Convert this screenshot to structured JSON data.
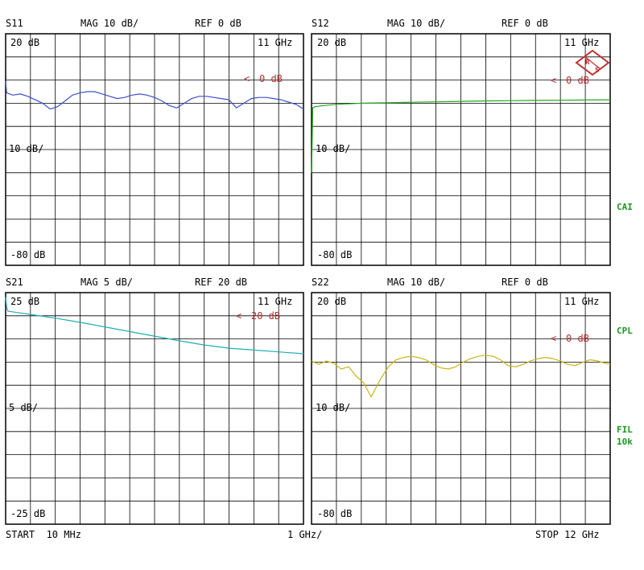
{
  "colors": {
    "background": "#ffffff",
    "grid": "#000000",
    "ref_marker": "#b03030",
    "status_green": "#1a9a1a",
    "logo": "#c03030"
  },
  "footer": {
    "start": "START  10 MHz",
    "division": "1 GHz/",
    "stop": "STOP 12 GHz"
  },
  "status": {
    "cai": "CAI",
    "cpl": "CPL",
    "fil": "FIL",
    "fil_bw": "10k"
  },
  "logo": {
    "letters": [
      "R",
      "S"
    ]
  },
  "chart_data": [
    {
      "type": "line",
      "title": "S11",
      "mag": "MAG 10 dB/",
      "ref": "REF 0 dB",
      "top_label": "20 dB",
      "mid_label": "10 dB/",
      "bottom_label": "-80 dB",
      "freq_label": "11 GHz",
      "ref_marker": "0 dB",
      "ylim": [
        -80,
        20
      ],
      "xlim": [
        0.01,
        12
      ],
      "ref_level": 0,
      "color": "#3d4fd0",
      "x": [
        0.01,
        0.03,
        0.05,
        0.3,
        0.6,
        0.9,
        1.2,
        1.5,
        1.8,
        2.1,
        2.4,
        2.7,
        3.0,
        3.3,
        3.6,
        3.9,
        4.2,
        4.5,
        4.8,
        5.1,
        5.4,
        5.7,
        6.0,
        6.3,
        6.6,
        6.9,
        7.2,
        7.5,
        7.8,
        8.1,
        8.4,
        8.7,
        9.0,
        9.3,
        9.6,
        9.9,
        10.2,
        10.5,
        10.8,
        11.1,
        11.4,
        11.7,
        12.0
      ],
      "values": [
        -0.5,
        -3.0,
        -5.5,
        -6.5,
        -6.0,
        -7.0,
        -8.5,
        -10.0,
        -12.5,
        -11.5,
        -9.0,
        -6.5,
        -5.5,
        -5.0,
        -5.0,
        -6.0,
        -7.0,
        -8.0,
        -7.5,
        -6.5,
        -6.0,
        -6.5,
        -7.5,
        -9.0,
        -11.0,
        -12.0,
        -10.0,
        -8.0,
        -7.0,
        -7.0,
        -7.5,
        -8.0,
        -8.5,
        -12.0,
        -10.0,
        -8.0,
        -7.5,
        -7.5,
        -8.0,
        -8.5,
        -9.5,
        -10.5,
        -12.5
      ]
    },
    {
      "type": "line",
      "title": "S12",
      "mag": "MAG 10 dB/",
      "ref": "REF 0 dB",
      "top_label": "20 dB",
      "mid_label": "10 dB/",
      "bottom_label": "-80 dB",
      "freq_label": "11 GHz",
      "ref_marker": "0 dB",
      "ylim": [
        -80,
        20
      ],
      "xlim": [
        0.01,
        12
      ],
      "ref_level": 0,
      "color": "#1fa81f",
      "x": [
        0.01,
        0.03,
        0.06,
        0.15,
        0.5,
        1.0,
        2.0,
        3.0,
        4.0,
        5.0,
        6.0,
        7.0,
        8.0,
        9.0,
        10.0,
        11.0,
        12.0
      ],
      "values": [
        -40.0,
        -30.0,
        -12.0,
        -11.5,
        -11.0,
        -10.5,
        -10.0,
        -9.8,
        -9.6,
        -9.4,
        -9.2,
        -9.0,
        -8.9,
        -8.8,
        -8.7,
        -8.6,
        -8.5
      ]
    },
    {
      "type": "line",
      "title": "S21",
      "mag": "MAG 5 dB/",
      "ref": "REF 20 dB",
      "top_label": "25 dB",
      "mid_label": "5 dB/",
      "bottom_label": "-25 dB",
      "freq_label": "11 GHz",
      "ref_marker": "20 dB",
      "ylim": [
        -25,
        25
      ],
      "xlim": [
        0.01,
        12
      ],
      "ref_level": 20,
      "color": "#1fb0b0",
      "x": [
        0.01,
        0.05,
        0.1,
        0.5,
        1.0,
        2.0,
        3.0,
        4.0,
        5.0,
        6.0,
        7.0,
        8.0,
        9.0,
        10.0,
        11.0,
        12.0
      ],
      "values": [
        24.0,
        22.0,
        21.0,
        20.7,
        20.3,
        19.5,
        18.6,
        17.6,
        16.6,
        15.6,
        14.6,
        13.7,
        13.0,
        12.6,
        12.2,
        11.8
      ]
    },
    {
      "type": "line",
      "title": "S22",
      "mag": "MAG 10 dB/",
      "ref": "REF 0 dB",
      "top_label": "20 dB",
      "mid_label": "10 dB/",
      "bottom_label": "-80 dB",
      "freq_label": "11 GHz",
      "ref_marker": "0 dB",
      "ylim": [
        -80,
        20
      ],
      "xlim": [
        0.01,
        12
      ],
      "ref_level": 0,
      "color": "#c8b514",
      "x": [
        0.01,
        0.3,
        0.6,
        0.9,
        1.2,
        1.5,
        1.8,
        2.1,
        2.4,
        2.6,
        2.8,
        3.1,
        3.4,
        3.7,
        4.0,
        4.3,
        4.6,
        4.9,
        5.2,
        5.5,
        5.8,
        6.1,
        6.4,
        6.7,
        7.0,
        7.3,
        7.6,
        7.9,
        8.2,
        8.5,
        8.8,
        9.1,
        9.4,
        9.7,
        10.0,
        10.3,
        10.6,
        10.9,
        11.2,
        11.5,
        11.8,
        12.0
      ],
      "values": [
        -9.5,
        -11.0,
        -9.5,
        -10.5,
        -13.0,
        -12.0,
        -16.0,
        -19.0,
        -25.0,
        -21.0,
        -17.0,
        -12.0,
        -9.0,
        -8.0,
        -7.5,
        -8.0,
        -9.0,
        -11.0,
        -12.5,
        -13.0,
        -12.0,
        -10.0,
        -8.5,
        -7.5,
        -7.0,
        -7.5,
        -9.0,
        -11.5,
        -12.0,
        -11.0,
        -9.5,
        -8.5,
        -8.0,
        -8.5,
        -9.5,
        -11.0,
        -11.5,
        -10.0,
        -9.0,
        -9.5,
        -10.5,
        -11.0
      ]
    }
  ]
}
